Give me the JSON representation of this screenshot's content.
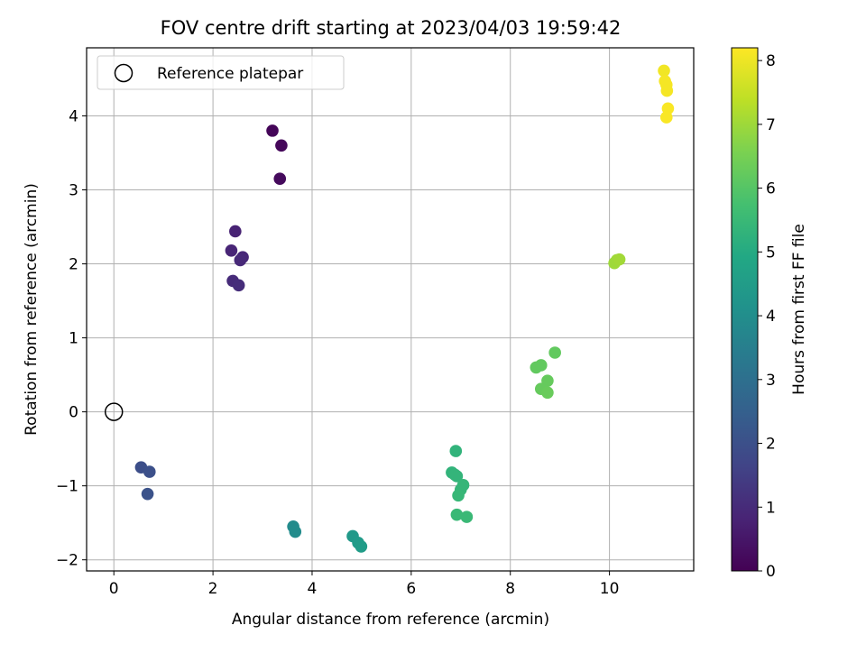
{
  "chart_data": {
    "type": "scatter",
    "title": "FOV centre drift starting at 2023/04/03 19:59:42",
    "xlabel": "Angular distance from reference (arcmin)",
    "ylabel": "Rotation from reference (arcmin)",
    "xlim": [
      -0.55,
      11.7
    ],
    "ylim": [
      -2.15,
      4.92
    ],
    "xticks": [
      0,
      2,
      4,
      6,
      8,
      10
    ],
    "yticks": [
      -2,
      -1,
      0,
      1,
      2,
      3,
      4
    ],
    "xtick_labels": [
      "0",
      "2",
      "4",
      "6",
      "8",
      "10"
    ],
    "ytick_labels": [
      "−2",
      "−1",
      "0",
      "1",
      "2",
      "3",
      "4"
    ],
    "grid": true,
    "legend": {
      "position": "top-left",
      "entries": [
        {
          "label": "Reference platepar",
          "marker": "open-circle",
          "color": "#000000"
        }
      ]
    },
    "reference_point": {
      "x": 0,
      "y": 0
    },
    "colorbar": {
      "label": "Hours from first FF file",
      "range": [
        0,
        8.2
      ],
      "ticks": [
        0,
        1,
        2,
        3,
        4,
        5,
        6,
        7,
        8
      ],
      "tick_labels": [
        "0",
        "1",
        "2",
        "3",
        "4",
        "5",
        "6",
        "7",
        "8"
      ],
      "colormap": "viridis"
    },
    "points": [
      {
        "x": 3.2,
        "y": 3.8,
        "hours": 0.1
      },
      {
        "x": 3.38,
        "y": 3.6,
        "hours": 0.15
      },
      {
        "x": 3.35,
        "y": 3.15,
        "hours": 0.2
      },
      {
        "x": 2.45,
        "y": 2.44,
        "hours": 0.8
      },
      {
        "x": 2.37,
        "y": 2.18,
        "hours": 0.85
      },
      {
        "x": 2.6,
        "y": 2.09,
        "hours": 0.9
      },
      {
        "x": 2.55,
        "y": 2.05,
        "hours": 0.95
      },
      {
        "x": 2.4,
        "y": 1.77,
        "hours": 1.0
      },
      {
        "x": 2.52,
        "y": 1.71,
        "hours": 1.05
      },
      {
        "x": 0.55,
        "y": -0.75,
        "hours": 1.95
      },
      {
        "x": 0.72,
        "y": -0.81,
        "hours": 2.0
      },
      {
        "x": 0.68,
        "y": -1.11,
        "hours": 2.05
      },
      {
        "x": 3.62,
        "y": -1.55,
        "hours": 3.9
      },
      {
        "x": 3.66,
        "y": -1.62,
        "hours": 3.95
      },
      {
        "x": 4.82,
        "y": -1.68,
        "hours": 4.4
      },
      {
        "x": 4.93,
        "y": -1.77,
        "hours": 4.45
      },
      {
        "x": 4.99,
        "y": -1.82,
        "hours": 4.5
      },
      {
        "x": 6.9,
        "y": -0.53,
        "hours": 5.3
      },
      {
        "x": 6.82,
        "y": -0.82,
        "hours": 5.3
      },
      {
        "x": 6.88,
        "y": -0.85,
        "hours": 5.35
      },
      {
        "x": 6.92,
        "y": -0.87,
        "hours": 5.35
      },
      {
        "x": 7.05,
        "y": -0.99,
        "hours": 5.4
      },
      {
        "x": 7.0,
        "y": -1.05,
        "hours": 5.4
      },
      {
        "x": 6.95,
        "y": -1.13,
        "hours": 5.45
      },
      {
        "x": 6.92,
        "y": -1.39,
        "hours": 5.5
      },
      {
        "x": 7.12,
        "y": -1.42,
        "hours": 5.5
      },
      {
        "x": 8.9,
        "y": 0.8,
        "hours": 6.2
      },
      {
        "x": 8.52,
        "y": 0.6,
        "hours": 6.2
      },
      {
        "x": 8.62,
        "y": 0.63,
        "hours": 6.2
      },
      {
        "x": 8.75,
        "y": 0.42,
        "hours": 6.25
      },
      {
        "x": 8.62,
        "y": 0.31,
        "hours": 6.25
      },
      {
        "x": 8.75,
        "y": 0.26,
        "hours": 6.3
      },
      {
        "x": 10.1,
        "y": 2.01,
        "hours": 7.0
      },
      {
        "x": 10.15,
        "y": 2.05,
        "hours": 7.0
      },
      {
        "x": 10.2,
        "y": 2.06,
        "hours": 7.05
      },
      {
        "x": 11.1,
        "y": 4.61,
        "hours": 8.05
      },
      {
        "x": 11.12,
        "y": 4.47,
        "hours": 8.1
      },
      {
        "x": 11.15,
        "y": 4.42,
        "hours": 8.1
      },
      {
        "x": 11.16,
        "y": 4.34,
        "hours": 8.1
      },
      {
        "x": 11.18,
        "y": 4.1,
        "hours": 8.15
      },
      {
        "x": 11.15,
        "y": 3.98,
        "hours": 8.15
      }
    ]
  }
}
